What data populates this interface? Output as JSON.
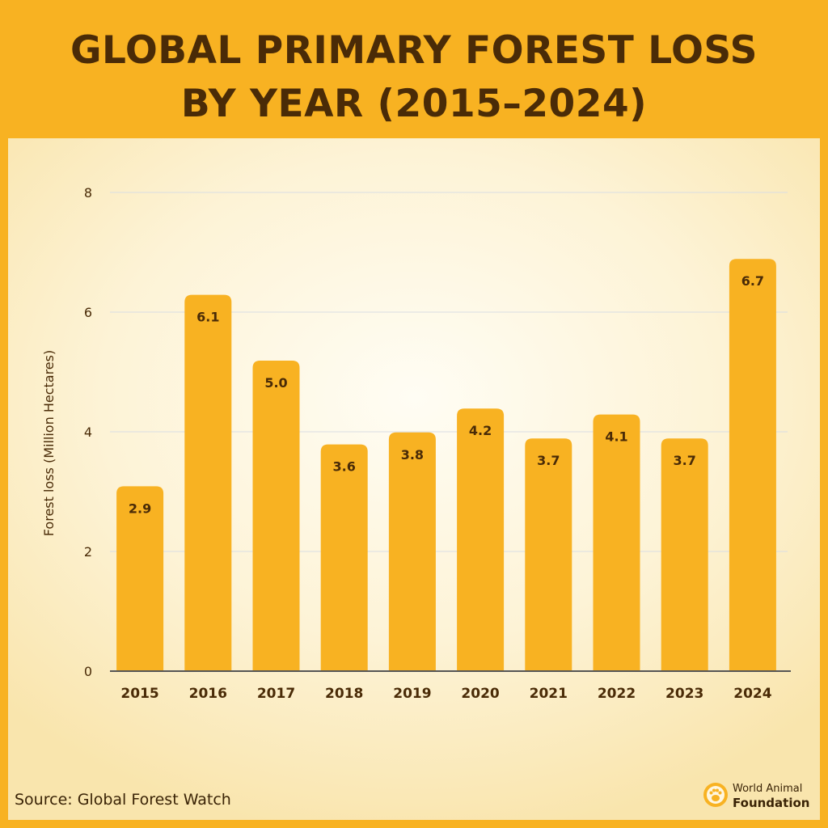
{
  "header": {
    "title_line1": "GLOBAL PRIMARY FOREST LOSS",
    "title_line2": "BY YEAR (2015–2024)"
  },
  "footer": {
    "source": "Source: Global Forest Watch",
    "logo_line1": "World Animal",
    "logo_line2": "Foundation"
  },
  "colors": {
    "header_bg": "#f8b222",
    "bar": "#f8b222",
    "text_dark": "#4a2b07",
    "grid": "#d9dde3"
  },
  "chart_data": {
    "type": "bar",
    "title": "GLOBAL PRIMARY FOREST LOSS BY YEAR (2015–2024)",
    "xlabel": "",
    "ylabel": "Forest loss (Million Hectares)",
    "categories": [
      "2015",
      "2016",
      "2017",
      "2018",
      "2019",
      "2020",
      "2021",
      "2022",
      "2023",
      "2024"
    ],
    "values": [
      2.9,
      6.1,
      5.0,
      3.6,
      3.8,
      4.2,
      3.7,
      4.1,
      3.7,
      6.7
    ],
    "data_labels": [
      "2.9",
      "6.1",
      "5.0",
      "3.6",
      "3.8",
      "4.2",
      "3.7",
      "4.1",
      "3.7",
      "6.7"
    ],
    "yticks": [
      0,
      2,
      4,
      6,
      8
    ],
    "ylim": [
      0,
      8
    ],
    "grid": true,
    "legend": "none"
  }
}
